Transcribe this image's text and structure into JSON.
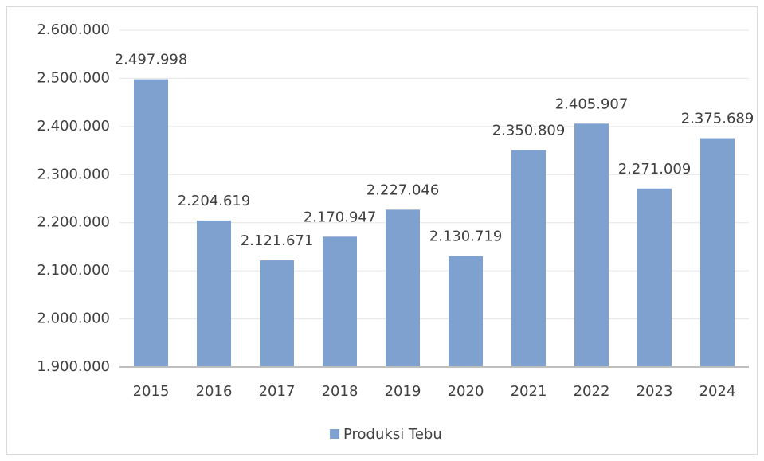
{
  "chart_data": {
    "type": "bar",
    "categories": [
      "2015",
      "2016",
      "2017",
      "2018",
      "2019",
      "2020",
      "2021",
      "2022",
      "2023",
      "2024"
    ],
    "series": [
      {
        "name": "Produksi Tebu",
        "color": "#7fa1d0",
        "values": [
          2497998,
          2204619,
          2121671,
          2170947,
          2227046,
          2130719,
          2350809,
          2405907,
          2271009,
          2375689
        ],
        "value_labels": [
          "2.497.998",
          "2.204.619",
          "2.121.671",
          "2.170.947",
          "2.227.046",
          "2.130.719",
          "2.350.809",
          "2.405.907",
          "2.271.009",
          "2.375.689"
        ]
      }
    ],
    "ylim": [
      1900000,
      2600000
    ],
    "yticks": [
      {
        "value": 1900000,
        "label": "1.900.000"
      },
      {
        "value": 2000000,
        "label": "2.000.000"
      },
      {
        "value": 2100000,
        "label": "2.100.000"
      },
      {
        "value": 2200000,
        "label": "2.200.000"
      },
      {
        "value": 2300000,
        "label": "2.300.000"
      },
      {
        "value": 2400000,
        "label": "2.400.000"
      },
      {
        "value": 2500000,
        "label": "2.500.000"
      },
      {
        "value": 2600000,
        "label": "2.600.000"
      }
    ],
    "grid": true,
    "legend": "bottom"
  }
}
